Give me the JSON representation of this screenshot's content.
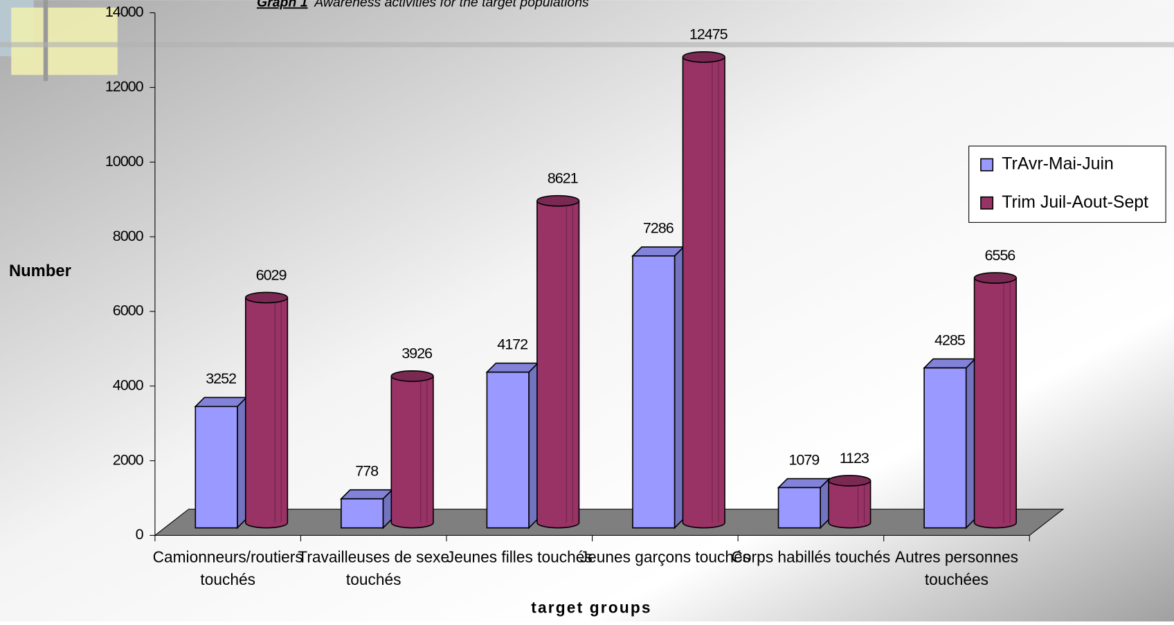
{
  "chart_data": {
    "type": "bar3d",
    "title_label": "Graph 1",
    "title": "Awareness activities for the target populations",
    "y_label": "Number",
    "x_label": "target groups",
    "categories": [
      "Camionneurs/routiers touchés",
      "Travailleuses de sexe touchés",
      "Jeunes filles touchés",
      "Jeunes garçons touchés",
      "Corps habillés touchés",
      "Autres personnes touchées"
    ],
    "series": [
      {
        "name": "TrAvr-Mai-Juin",
        "color": "#9999ff",
        "values": [
          3252,
          778,
          4172,
          7286,
          1079,
          4285
        ]
      },
      {
        "name": "Trim Juil-Aout-Sept",
        "color": "#993366",
        "values": [
          6029,
          3926,
          8621,
          12475,
          1123,
          6556
        ]
      }
    ],
    "ylim": [
      0,
      14000
    ],
    "yticks": [
      0,
      2000,
      4000,
      6000,
      8000,
      10000,
      12000,
      14000
    ],
    "legend": "right"
  }
}
